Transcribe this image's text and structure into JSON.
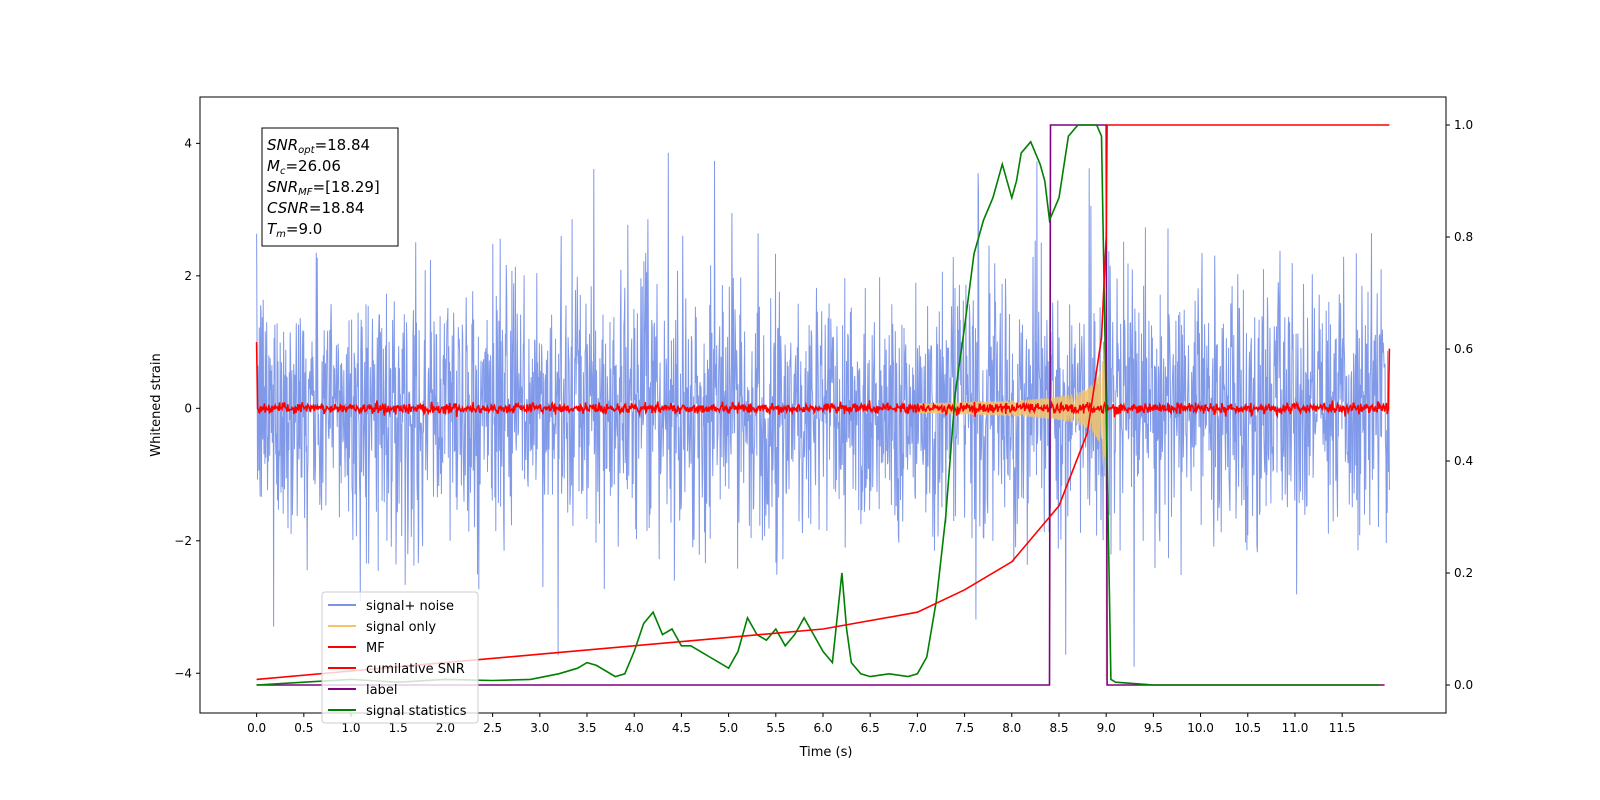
{
  "chart_data": {
    "type": "line",
    "xlabel": "Time (s)",
    "ylabel": "Whitened strain",
    "y2label": "",
    "xlim": [
      -0.6,
      12.6
    ],
    "ylim": [
      -4.6,
      4.7
    ],
    "y2lim": [
      -0.05,
      1.05
    ],
    "xticks": [
      0.0,
      0.5,
      1.0,
      1.5,
      2.0,
      2.5,
      3.0,
      3.5,
      4.0,
      4.5,
      5.0,
      5.5,
      6.0,
      6.5,
      7.0,
      7.5,
      8.0,
      8.5,
      9.0,
      9.5,
      10.0,
      10.5,
      11.0,
      11.5
    ],
    "xtick_labels": [
      "0.0",
      "0.5",
      "1.0",
      "1.5",
      "2.0",
      "2.5",
      "3.0",
      "3.5",
      "4.0",
      "4.5",
      "5.0",
      "5.5",
      "6.0",
      "6.5",
      "7.0",
      "7.5",
      "8.0",
      "8.5",
      "9.0",
      "9.5",
      "10.0",
      "10.5",
      "11.0",
      "11.5"
    ],
    "yticks": [
      -4,
      -2,
      0,
      2,
      4
    ],
    "ytick_labels": [
      "−4",
      "−2",
      "0",
      "2",
      "4"
    ],
    "y2ticks": [
      0.0,
      0.2,
      0.4,
      0.6,
      0.8,
      1.0
    ],
    "y2tick_labels": [
      "0.0",
      "0.2",
      "0.4",
      "0.6",
      "0.8",
      "1.0"
    ],
    "grid": false,
    "legend_position": "bottom-left",
    "series": [
      {
        "name": "signal+ noise",
        "axis": "left",
        "color": "#7a93e8",
        "description_values": "noise band roughly ±2.5 with spikes to ±4.1",
        "x_range": [
          0.0,
          12.0
        ],
        "amplitude_typical": 2.2,
        "amplitude_peak": 4.1
      },
      {
        "name": "signal only",
        "axis": "left",
        "color": "#f5c46a",
        "chirp_start": 7.0,
        "chirp_end": 9.0,
        "peak_amplitude": 2.0
      },
      {
        "name": "MF",
        "axis": "left",
        "color": "#ff0000",
        "baseline": 0.0,
        "jitter": 0.1,
        "edge_value": 1.0
      },
      {
        "name": "cumilative SNR",
        "axis": "right",
        "color": "#ff0000",
        "x": [
          0.0,
          1.0,
          2.0,
          3.0,
          4.0,
          5.0,
          6.0,
          7.0,
          7.5,
          8.0,
          8.5,
          8.8,
          8.95,
          9.0,
          9.01,
          12.0
        ],
        "y": [
          0.01,
          0.025,
          0.04,
          0.055,
          0.07,
          0.085,
          0.1,
          0.13,
          0.17,
          0.22,
          0.32,
          0.45,
          0.62,
          0.8,
          1.0,
          1.0
        ]
      },
      {
        "name": "label",
        "axis": "right",
        "color": "#800080",
        "x": [
          0.0,
          8.4,
          8.41,
          9.0,
          9.01,
          11.95
        ],
        "y": [
          0.0,
          0.0,
          1.0,
          1.0,
          0.0,
          0.0
        ]
      },
      {
        "name": "signal statistics",
        "axis": "right",
        "color": "#008000",
        "x": [
          0.0,
          0.5,
          1.0,
          1.5,
          2.0,
          2.5,
          2.9,
          3.2,
          3.4,
          3.5,
          3.6,
          3.8,
          3.9,
          4.0,
          4.1,
          4.2,
          4.3,
          4.4,
          4.5,
          4.6,
          4.7,
          4.8,
          4.9,
          5.0,
          5.1,
          5.2,
          5.3,
          5.4,
          5.5,
          5.6,
          5.7,
          5.8,
          5.9,
          6.0,
          6.1,
          6.2,
          6.25,
          6.3,
          6.4,
          6.5,
          6.7,
          6.9,
          7.0,
          7.1,
          7.2,
          7.3,
          7.4,
          7.5,
          7.6,
          7.7,
          7.8,
          7.9,
          8.0,
          8.05,
          8.1,
          8.2,
          8.3,
          8.35,
          8.4,
          8.5,
          8.6,
          8.7,
          8.9,
          8.95,
          9.05,
          9.1,
          9.5,
          11.9
        ],
        "y": [
          0.0,
          0.005,
          0.01,
          0.005,
          0.01,
          0.008,
          0.01,
          0.02,
          0.03,
          0.04,
          0.035,
          0.015,
          0.02,
          0.06,
          0.11,
          0.13,
          0.09,
          0.1,
          0.07,
          0.07,
          0.06,
          0.05,
          0.04,
          0.03,
          0.06,
          0.12,
          0.09,
          0.08,
          0.1,
          0.07,
          0.09,
          0.12,
          0.09,
          0.06,
          0.04,
          0.2,
          0.1,
          0.04,
          0.02,
          0.015,
          0.02,
          0.015,
          0.02,
          0.05,
          0.15,
          0.3,
          0.52,
          0.64,
          0.77,
          0.83,
          0.87,
          0.93,
          0.87,
          0.9,
          0.95,
          0.97,
          0.93,
          0.9,
          0.83,
          0.87,
          0.98,
          1.0,
          1.0,
          0.98,
          0.01,
          0.005,
          0.0,
          0.0
        ]
      }
    ],
    "annotation_box": {
      "position": "top-left",
      "lines": [
        {
          "base": "SNR",
          "sub": "opt",
          "rest": "=18.84"
        },
        {
          "base": "M",
          "sub": "c",
          "rest": "=26.06"
        },
        {
          "base": "SNR",
          "sub": "MF",
          "rest": "=[18.29]"
        },
        {
          "base": "CSNR",
          "sub": "",
          "rest": "=18.84"
        },
        {
          "base": "T",
          "sub": "m",
          "rest": "=9.0"
        }
      ]
    }
  }
}
